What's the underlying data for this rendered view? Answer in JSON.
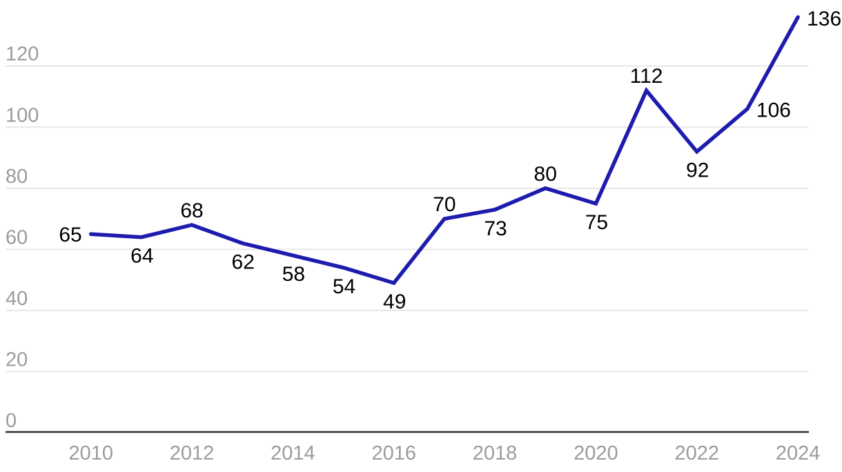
{
  "chart_data": {
    "type": "line",
    "title": "",
    "xlabel": "",
    "ylabel": "",
    "legend": "none",
    "grid": "horizontal-only",
    "x": [
      2010,
      2011,
      2012,
      2013,
      2014,
      2015,
      2016,
      2017,
      2018,
      2019,
      2020,
      2021,
      2022,
      2023,
      2024
    ],
    "values": [
      65,
      64,
      68,
      62,
      58,
      54,
      49,
      70,
      73,
      80,
      75,
      112,
      92,
      106,
      136
    ],
    "data_labels": [
      "65",
      "64",
      "68",
      "62",
      "58",
      "54",
      "49",
      "70",
      "73",
      "80",
      "75",
      "112",
      "92",
      "106",
      "136"
    ],
    "data_label_placements": [
      "left",
      "below",
      "above",
      "below",
      "below",
      "below",
      "below",
      "above",
      "below",
      "above",
      "below",
      "above",
      "below",
      "right",
      "right"
    ],
    "x_ticks": [
      2010,
      2012,
      2014,
      2016,
      2018,
      2020,
      2022,
      2024
    ],
    "x_tick_labels": [
      "2010",
      "2012",
      "2014",
      "2016",
      "2018",
      "2020",
      "2022",
      "2024"
    ],
    "y_ticks": [
      0,
      20,
      40,
      60,
      80,
      100,
      120
    ],
    "y_tick_labels": [
      "0",
      "20",
      "40",
      "60",
      "80",
      "100",
      "120"
    ],
    "ylim": [
      0,
      142
    ]
  },
  "colors": {
    "line": "#1e1cae",
    "gridline": "#e7e7e7",
    "axis_line": "#2d2d2d",
    "tick_label": "#9b9b9b",
    "data_label": "#000000",
    "background": "#ffffff"
  }
}
